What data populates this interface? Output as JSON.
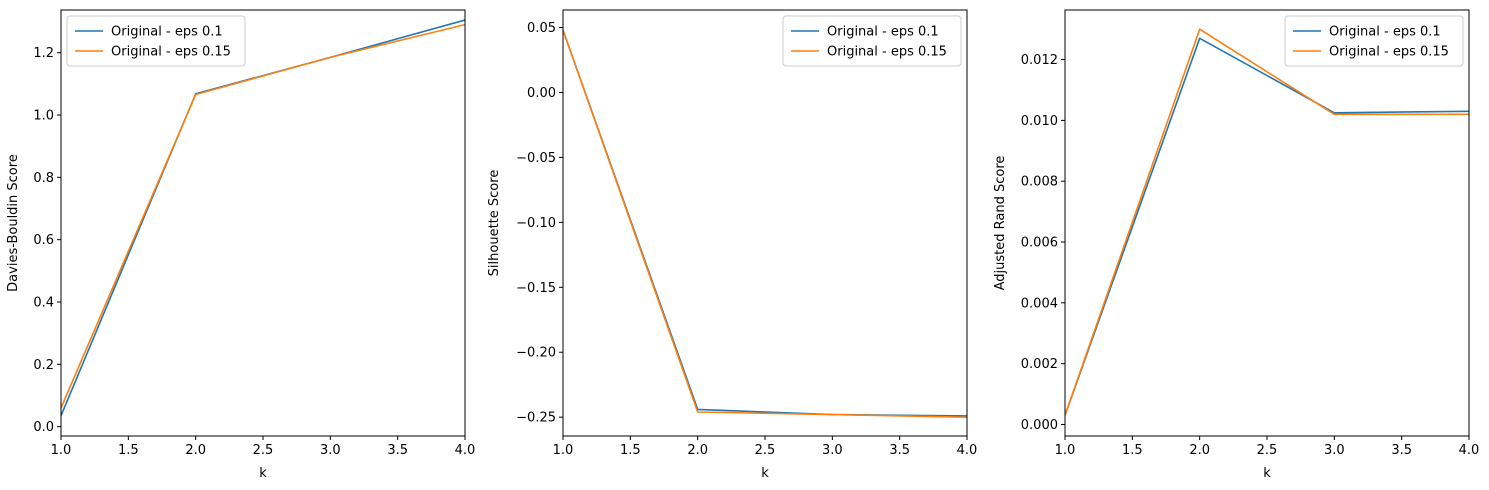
{
  "chart_data": [
    {
      "type": "line",
      "xlabel": "k",
      "ylabel": "Davies-Bouldin Score",
      "xlim": [
        1.0,
        4.0
      ],
      "ylim": [
        -0.03,
        1.337
      ],
      "xticks": [
        "1.0",
        "1.5",
        "2.0",
        "2.5",
        "3.0",
        "3.5",
        "4.0"
      ],
      "yticks": [
        "0.0",
        "0.2",
        "0.4",
        "0.6",
        "0.8",
        "1.0",
        "1.2"
      ],
      "legend_position": "top-left",
      "grid": false,
      "x": [
        1,
        2,
        3,
        4
      ],
      "series": [
        {
          "name": "Original - eps 0.1",
          "color": "#1f77b4",
          "values": [
            0.035,
            1.068,
            1.185,
            1.305
          ]
        },
        {
          "name": "Original - eps 0.15",
          "color": "#ff7f0e",
          "values": [
            0.06,
            1.066,
            1.185,
            1.29
          ]
        }
      ]
    },
    {
      "type": "line",
      "xlabel": "k",
      "ylabel": "Silhouette Score",
      "xlim": [
        1.0,
        4.0
      ],
      "ylim": [
        -0.2645,
        0.0635
      ],
      "xticks": [
        "1.0",
        "1.5",
        "2.0",
        "2.5",
        "3.0",
        "3.5",
        "4.0"
      ],
      "yticks": [
        "0.05",
        "0.00",
        "−0.05",
        "−0.10",
        "−0.15",
        "−0.20",
        "−0.25"
      ],
      "legend_position": "top-right",
      "grid": false,
      "x": [
        1,
        2,
        3,
        4
      ],
      "series": [
        {
          "name": "Original - eps 0.1",
          "color": "#1f77b4",
          "values": [
            0.048,
            -0.244,
            -0.248,
            -0.249
          ]
        },
        {
          "name": "Original - eps 0.15",
          "color": "#ff7f0e",
          "values": [
            0.048,
            -0.246,
            -0.248,
            -0.25
          ]
        }
      ]
    },
    {
      "type": "line",
      "xlabel": "k",
      "ylabel": "Adjusted Rand Score",
      "xlim": [
        1.0,
        4.0
      ],
      "ylim": [
        -0.00038,
        0.01363
      ],
      "xticks": [
        "1.0",
        "1.5",
        "2.0",
        "2.5",
        "3.0",
        "3.5",
        "4.0"
      ],
      "yticks": [
        "0.000",
        "0.002",
        "0.004",
        "0.006",
        "0.008",
        "0.010",
        "0.012"
      ],
      "legend_position": "top-right",
      "grid": false,
      "x": [
        1,
        2,
        3,
        4
      ],
      "series": [
        {
          "name": "Original - eps 0.1",
          "color": "#1f77b4",
          "values": [
            0.0003,
            0.0127,
            0.01025,
            0.0103
          ]
        },
        {
          "name": "Original - eps 0.15",
          "color": "#ff7f0e",
          "values": [
            0.0003,
            0.013,
            0.0102,
            0.0102
          ]
        }
      ]
    }
  ]
}
